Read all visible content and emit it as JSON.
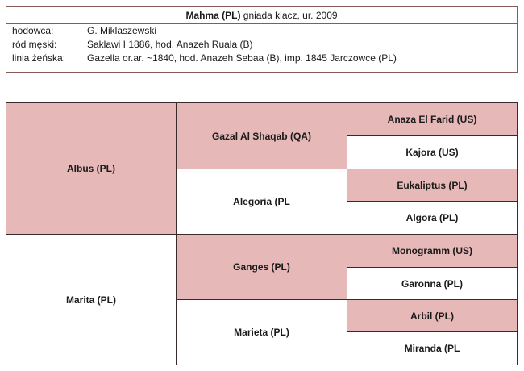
{
  "header": {
    "name": "Mahma (PL)",
    "desc": " gniada klacz, ur. 2009",
    "rows": [
      {
        "label": "hodowca:",
        "value": "G. Miklaszewski"
      },
      {
        "label": "ród męski:",
        "value": "Saklawi I 1886,  hod. Anazeh Ruala (B)"
      },
      {
        "label": "linia żeńska:",
        "value": "Gazella or.ar. ~1840,  hod. Anazeh Sebaa (B), imp. 1845 Jarczowce (PL)"
      }
    ]
  },
  "pedigree": {
    "gen1": [
      "Albus (PL)",
      "Marita (PL)"
    ],
    "gen2": [
      "Gazal Al Shaqab (QA)",
      "Alegoria (PL",
      "Ganges (PL)",
      "Marieta (PL)"
    ],
    "gen3": [
      "Anaza El Farid (US)",
      "Kajora (US)",
      "Eukaliptus (PL)",
      "Algora (PL)",
      "Monogramm (US)",
      "Garonna (PL)",
      "Arbil (PL)",
      "Miranda (PL"
    ]
  },
  "colors": {
    "sire": "#e6b8b7",
    "dam": "#ffffff",
    "border": "#3a2a2a"
  }
}
